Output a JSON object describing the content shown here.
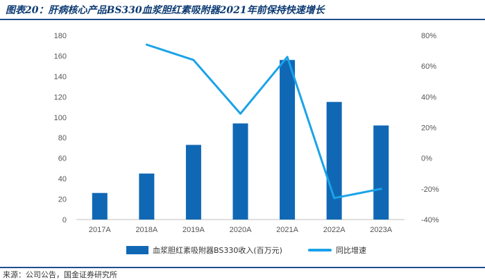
{
  "title": "图表20：肝病核心产品BS330血浆胆红素吸附器2021年前保持快速增长",
  "source": "来源：公司公告，国金证券研究所",
  "chart_data": {
    "type": "bar",
    "categories": [
      "2017A",
      "2018A",
      "2019A",
      "2020A",
      "2021A",
      "2022A",
      "2023A"
    ],
    "series": [
      {
        "name": "血浆胆红素吸附器BS330收入(百万元)",
        "type": "bar",
        "axis": "left",
        "color": "#1068b5",
        "values": [
          26,
          45,
          73,
          94,
          156,
          115,
          92
        ]
      },
      {
        "name": "同比增速",
        "type": "line",
        "axis": "right",
        "color": "#1aa3e8",
        "values": [
          null,
          74,
          64,
          29,
          66,
          -26,
          -20
        ]
      }
    ],
    "ylim_left": [
      0,
      180
    ],
    "yticks_left": [
      "0",
      "20",
      "40",
      "60",
      "80",
      "100",
      "120",
      "140",
      "160",
      "180"
    ],
    "ylim_right": [
      -40,
      80
    ],
    "yticks_right": [
      "-40%",
      "-20%",
      "0%",
      "20%",
      "40%",
      "60%",
      "80%"
    ],
    "grid": false,
    "legend_position": "bottom"
  }
}
